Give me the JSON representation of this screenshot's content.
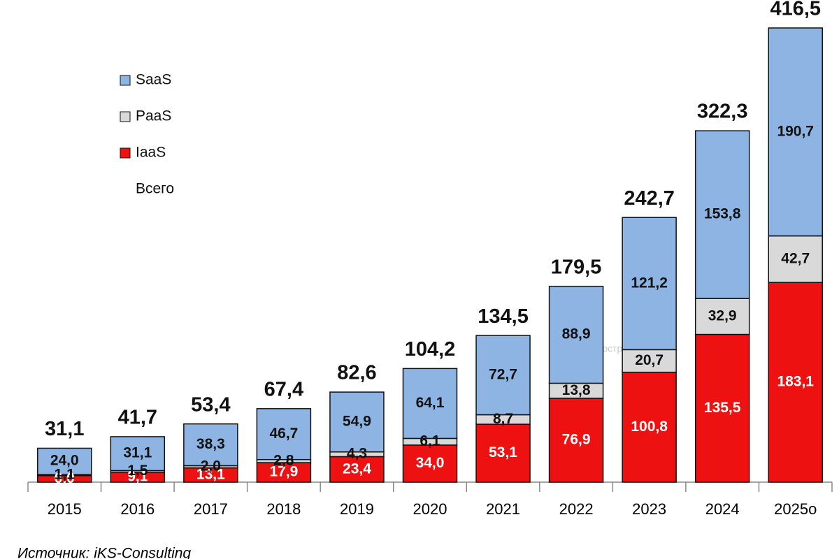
{
  "chart_data": {
    "type": "stacked_bar",
    "categories": [
      "2015",
      "2016",
      "2017",
      "2018",
      "2019",
      "2020",
      "2021",
      "2022",
      "2023",
      "2024",
      "2025о"
    ],
    "series": [
      {
        "name": "IaaS",
        "color": "#ee1111",
        "label_color": "#ffffff",
        "values": [
          6.0,
          9.1,
          13.1,
          17.9,
          23.4,
          34.0,
          53.1,
          76.9,
          100.8,
          135.5,
          183.1
        ],
        "value_labels": [
          "6,0",
          "9,1",
          "13,1",
          "17,9",
          "23,4",
          "34,0",
          "53,1",
          "76,9",
          "100,8",
          "135,5",
          "183,1"
        ]
      },
      {
        "name": "PaaS",
        "color": "#d9d9d9",
        "label_color": "#111111",
        "values": [
          1.1,
          1.5,
          2.0,
          2.8,
          4.3,
          6.1,
          8.7,
          13.8,
          20.7,
          32.9,
          42.7
        ],
        "value_labels": [
          "1,1",
          "1,5",
          "2,0",
          "2,8",
          "4,3",
          "6,1",
          "8,7",
          "13,8",
          "20,7",
          "32,9",
          "42,7"
        ]
      },
      {
        "name": "SaaS",
        "color": "#8db4e2",
        "label_color": "#111111",
        "values": [
          24.0,
          31.1,
          38.3,
          46.7,
          54.9,
          64.1,
          72.7,
          88.9,
          121.2,
          153.8,
          190.7
        ],
        "value_labels": [
          "24,0",
          "31,1",
          "38,3",
          "46,7",
          "54,9",
          "64,1",
          "72,7",
          "88,9",
          "121,2",
          "153,8",
          "190,7"
        ]
      }
    ],
    "totals": {
      "name": "Всего",
      "values": [
        31.1,
        41.7,
        53.4,
        67.4,
        82.6,
        104.2,
        134.5,
        179.5,
        242.7,
        322.3,
        416.5
      ],
      "value_labels": [
        "31,1",
        "41,7",
        "53,4",
        "67,4",
        "82,6",
        "104,2",
        "134,5",
        "179,5",
        "242,7",
        "322,3",
        "416,5"
      ]
    },
    "plot_area_hint": "Область построения",
    "source": "Источник: iKS-Consulting"
  }
}
